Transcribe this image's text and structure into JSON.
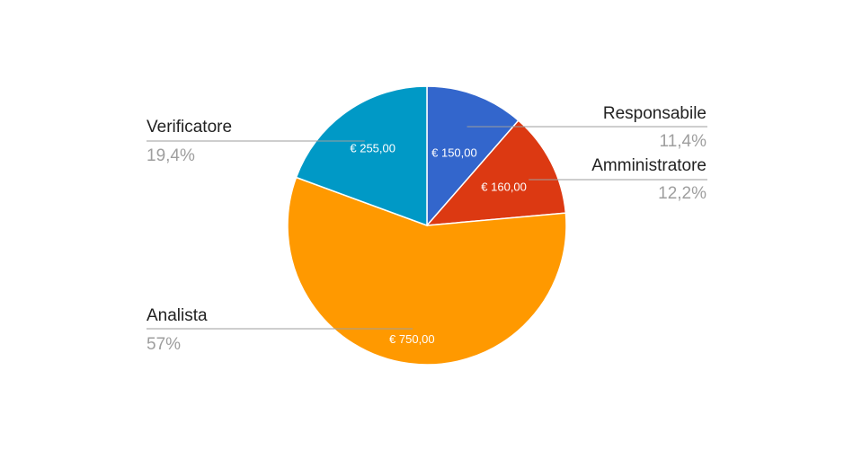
{
  "chart_data": {
    "type": "pie",
    "title": "",
    "slices": [
      {
        "label": "Responsabile",
        "value": 150,
        "value_label": "€ 150,00",
        "percent_label": "11,4%",
        "color": "#3366cc"
      },
      {
        "label": "Amministratore",
        "value": 160,
        "value_label": "€ 160,00",
        "percent_label": "12,2%",
        "color": "#dc3912"
      },
      {
        "label": "Analista",
        "value": 750,
        "value_label": "€ 750,00",
        "percent_label": "57%",
        "color": "#ff9900"
      },
      {
        "label": "Verificatore",
        "value": 255,
        "value_label": "€ 255,00",
        "percent_label": "19,4%",
        "color": "#0099c6"
      }
    ],
    "start_angle": "top",
    "direction": "clockwise",
    "legend": "none"
  }
}
